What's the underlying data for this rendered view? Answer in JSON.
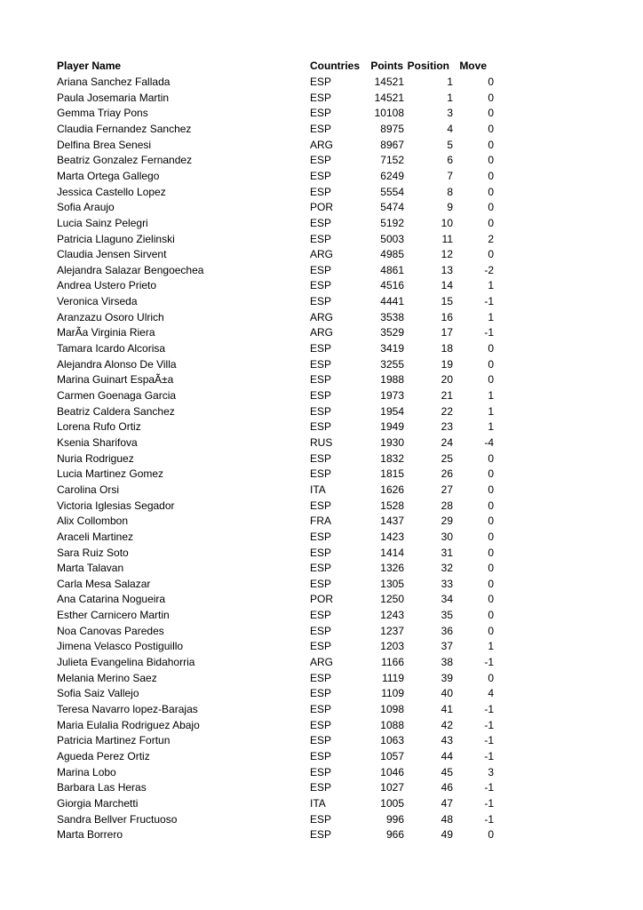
{
  "table": {
    "headers": {
      "name": "Player Name",
      "country": "Countries",
      "points": "Points",
      "position": "Position",
      "move": "Move"
    },
    "rows": [
      [
        "Ariana Sanchez Fallada",
        "ESP",
        "14521",
        "1",
        "0"
      ],
      [
        "Paula Josemaria Martin",
        "ESP",
        "14521",
        "1",
        "0"
      ],
      [
        "Gemma Triay Pons",
        "ESP",
        "10108",
        "3",
        "0"
      ],
      [
        "Claudia Fernandez Sanchez",
        "ESP",
        "8975",
        "4",
        "0"
      ],
      [
        "Delfina Brea Senesi",
        "ARG",
        "8967",
        "5",
        "0"
      ],
      [
        "Beatriz Gonzalez Fernandez",
        "ESP",
        "7152",
        "6",
        "0"
      ],
      [
        "Marta Ortega Gallego",
        "ESP",
        "6249",
        "7",
        "0"
      ],
      [
        "Jessica Castello Lopez",
        "ESP",
        "5554",
        "8",
        "0"
      ],
      [
        "Sofia Araujo",
        "POR",
        "5474",
        "9",
        "0"
      ],
      [
        "Lucia Sainz Pelegri",
        "ESP",
        "5192",
        "10",
        "0"
      ],
      [
        "Patricia Llaguno Zielinski",
        "ESP",
        "5003",
        "11",
        "2"
      ],
      [
        "Claudia Jensen Sirvent",
        "ARG",
        "4985",
        "12",
        "0"
      ],
      [
        "Alejandra Salazar Bengoechea",
        "ESP",
        "4861",
        "13",
        "-2"
      ],
      [
        "Andrea Ustero Prieto",
        "ESP",
        "4516",
        "14",
        "1"
      ],
      [
        "Veronica Virseda",
        "ESP",
        "4441",
        "15",
        "-1"
      ],
      [
        "Aranzazu Osoro Ulrich",
        "ARG",
        "3538",
        "16",
        "1"
      ],
      [
        "MarÃ­a Virginia Riera",
        "ARG",
        "3529",
        "17",
        "-1"
      ],
      [
        "Tamara Icardo Alcorisa",
        "ESP",
        "3419",
        "18",
        "0"
      ],
      [
        "Alejandra Alonso De Villa",
        "ESP",
        "3255",
        "19",
        "0"
      ],
      [
        "Marina Guinart EspaÃ±a",
        "ESP",
        "1988",
        "20",
        "0"
      ],
      [
        "Carmen Goenaga Garcia",
        "ESP",
        "1973",
        "21",
        "1"
      ],
      [
        "Beatriz Caldera Sanchez",
        "ESP",
        "1954",
        "22",
        "1"
      ],
      [
        "Lorena Rufo Ortiz",
        "ESP",
        "1949",
        "23",
        "1"
      ],
      [
        "Ksenia Sharifova",
        "RUS",
        "1930",
        "24",
        "-4"
      ],
      [
        "Nuria Rodriguez",
        "ESP",
        "1832",
        "25",
        "0"
      ],
      [
        "Lucia Martinez Gomez",
        "ESP",
        "1815",
        "26",
        "0"
      ],
      [
        "Carolina Orsi",
        "ITA",
        "1626",
        "27",
        "0"
      ],
      [
        "Victoria Iglesias Segador",
        "ESP",
        "1528",
        "28",
        "0"
      ],
      [
        "Alix Collombon",
        "FRA",
        "1437",
        "29",
        "0"
      ],
      [
        "Araceli Martinez",
        "ESP",
        "1423",
        "30",
        "0"
      ],
      [
        "Sara Ruiz Soto",
        "ESP",
        "1414",
        "31",
        "0"
      ],
      [
        "Marta Talavan",
        "ESP",
        "1326",
        "32",
        "0"
      ],
      [
        "Carla Mesa Salazar",
        "ESP",
        "1305",
        "33",
        "0"
      ],
      [
        "Ana Catarina Nogueira",
        "POR",
        "1250",
        "34",
        "0"
      ],
      [
        "Esther Carnicero Martin",
        "ESP",
        "1243",
        "35",
        "0"
      ],
      [
        "Noa Canovas Paredes",
        "ESP",
        "1237",
        "36",
        "0"
      ],
      [
        "Jimena Velasco Postiguillo",
        "ESP",
        "1203",
        "37",
        "1"
      ],
      [
        "Julieta Evangelina Bidahorria",
        "ARG",
        "1166",
        "38",
        "-1"
      ],
      [
        "Melania Merino Saez",
        "ESP",
        "1119",
        "39",
        "0"
      ],
      [
        "Sofia Saiz Vallejo",
        "ESP",
        "1109",
        "40",
        "4"
      ],
      [
        "Teresa Navarro lopez-Barajas",
        "ESP",
        "1098",
        "41",
        "-1"
      ],
      [
        "Maria Eulalia Rodriguez Abajo",
        "ESP",
        "1088",
        "42",
        "-1"
      ],
      [
        "Patricia Martinez Fortun",
        "ESP",
        "1063",
        "43",
        "-1"
      ],
      [
        "Agueda Perez Ortiz",
        "ESP",
        "1057",
        "44",
        "-1"
      ],
      [
        "Marina Lobo",
        "ESP",
        "1046",
        "45",
        "3"
      ],
      [
        "Barbara Las Heras",
        "ESP",
        "1027",
        "46",
        "-1"
      ],
      [
        "Giorgia Marchetti",
        "ITA",
        "1005",
        "47",
        "-1"
      ],
      [
        "Sandra Bellver Fructuoso",
        "ESP",
        "996",
        "48",
        "-1"
      ],
      [
        "Marta Borrero",
        "ESP",
        "966",
        "49",
        "0"
      ]
    ]
  }
}
